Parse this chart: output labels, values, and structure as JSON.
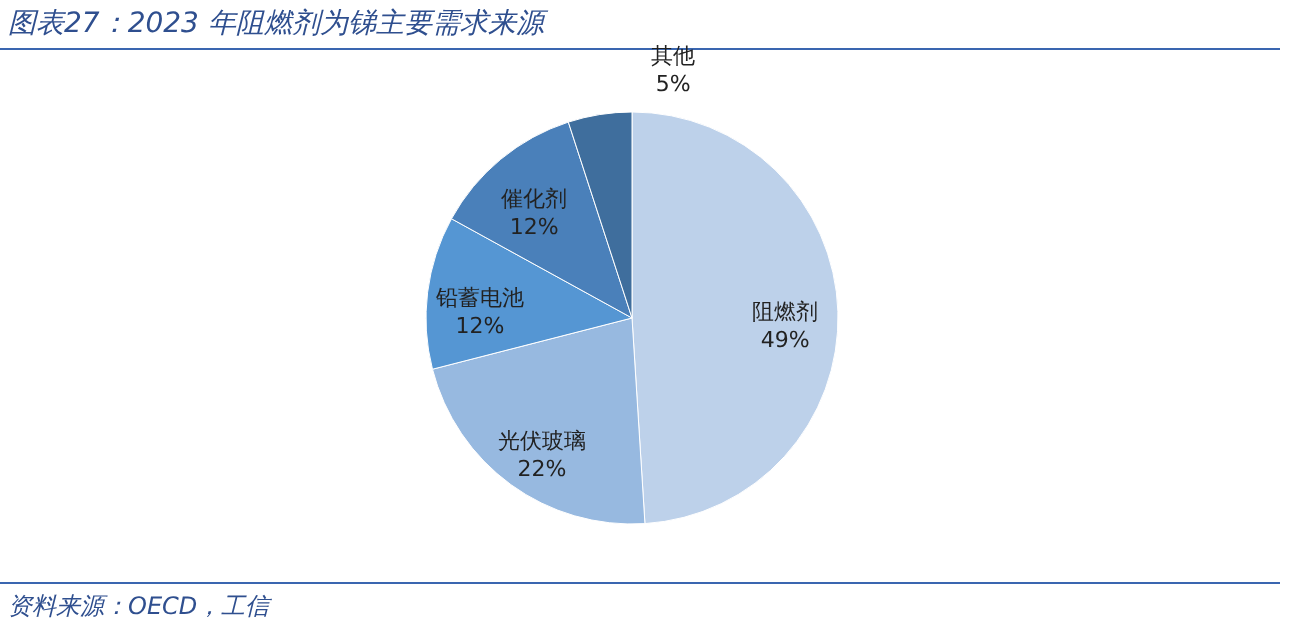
{
  "chart_data": {
    "type": "pie",
    "title": "图表27：2023 年阻燃剂为锑主要需求来源",
    "categories": [
      "阻燃剂",
      "光伏玻璃",
      "铅蓄电池",
      "催化剂",
      "其他"
    ],
    "values": [
      49,
      22,
      12,
      12,
      5
    ],
    "colors": [
      "#bdd1ea",
      "#97b9e0",
      "#5596d3",
      "#4a80ba",
      "#3f6e9d"
    ],
    "value_labels": [
      "49%",
      "22%",
      "12%",
      "12%",
      "5%"
    ],
    "annotations": [
      "资料来源：OECD，工信"
    ]
  }
}
